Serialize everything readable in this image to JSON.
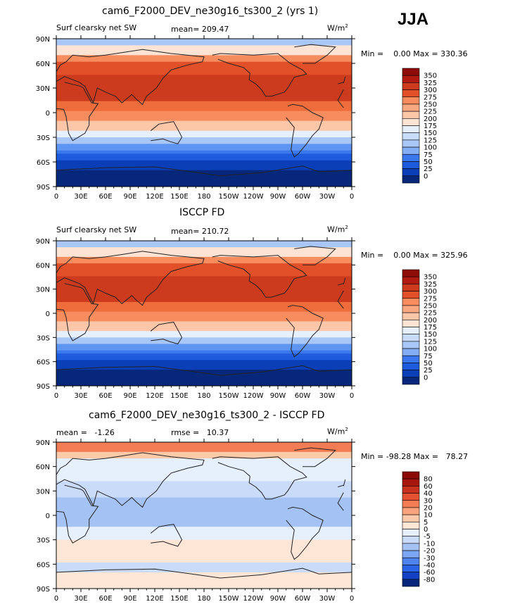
{
  "season": "JJA",
  "colors": {
    "abs_scale": [
      "#07287a",
      "#0a3fb8",
      "#1f5bdd",
      "#3b78ee",
      "#5e94f2",
      "#84aef4",
      "#a8c6f6",
      "#c8dcfa",
      "#e6effc",
      "#fde3d4",
      "#fcc6a8",
      "#fba882",
      "#f78c5f",
      "#ef6d3d",
      "#e2502a",
      "#cd3b1f",
      "#b01a10",
      "#8e0c08"
    ],
    "diff_scale": [
      "#07287a",
      "#1241c4",
      "#2a63e6",
      "#4f83ee",
      "#7ca5f2",
      "#a5c2f5",
      "#c9dbf8",
      "#e6effc",
      "#fde6d6",
      "#fcc9a9",
      "#f9a47e",
      "#f27d55",
      "#e45232",
      "#c9311f",
      "#a8170f",
      "#8b0a07"
    ],
    "land": "#222222"
  },
  "chart_data": [
    {
      "type": "heatmap",
      "name": "model",
      "title": "cam6_F2000_DEV_ne30g16_ts300_2 (yrs 1)",
      "left_label": "Surf clearsky net SW",
      "center_label": "mean= 209.47",
      "units": "W/m",
      "units_sup": "2",
      "minmax": "Min =    0.00 Max = 330.36",
      "legend_labels": [
        "350",
        "325",
        "300",
        "275",
        "250",
        "225",
        "200",
        "175",
        "150",
        "125",
        "100",
        "75",
        "50",
        "25",
        "0"
      ],
      "x_ticks": [
        "0",
        "30E",
        "60E",
        "90E",
        "120E",
        "150E",
        "180",
        "150W",
        "120W",
        "90W",
        "60W",
        "30W",
        "0"
      ],
      "y_ticks": [
        "90N",
        "60N",
        "30N",
        "0",
        "30S",
        "60S",
        "90S"
      ],
      "xlim": [
        0,
        360
      ],
      "ylim": [
        -90,
        90
      ]
    },
    {
      "type": "heatmap",
      "name": "obs",
      "title": "ISCCP FD",
      "left_label": "Surf clearsky net SW",
      "center_label": "mean= 210.72",
      "units": "W/m",
      "units_sup": "2",
      "minmax": "Min =    0.00 Max = 325.96",
      "legend_labels": [
        "350",
        "325",
        "300",
        "275",
        "250",
        "225",
        "200",
        "175",
        "150",
        "125",
        "100",
        "75",
        "50",
        "25",
        "0"
      ],
      "x_ticks": [
        "0",
        "30E",
        "60E",
        "90E",
        "120E",
        "150E",
        "180",
        "150W",
        "120W",
        "90W",
        "60W",
        "30W",
        "0"
      ],
      "y_ticks": [
        "90N",
        "60N",
        "30N",
        "0",
        "30S",
        "60S",
        "90S"
      ],
      "xlim": [
        0,
        360
      ],
      "ylim": [
        -90,
        90
      ]
    },
    {
      "type": "heatmap",
      "name": "diff",
      "title": "cam6_F2000_DEV_ne30g16_ts300_2 - ISCCP FD",
      "left_label": "mean =   -1.26",
      "center_label": "rmse =   10.37",
      "units": "W/m",
      "units_sup": "2",
      "minmax": "Min = -98.28 Max =   78.27",
      "legend_labels": [
        "80",
        "60",
        "40",
        "30",
        "20",
        "10",
        "5",
        "0",
        "-5",
        "-10",
        "-20",
        "-30",
        "-40",
        "-60",
        "-80"
      ],
      "x_ticks": [
        "0",
        "30E",
        "60E",
        "90E",
        "120E",
        "150E",
        "180",
        "150W",
        "120W",
        "90W",
        "60W",
        "30W",
        "0"
      ],
      "y_ticks": [
        "90N",
        "60N",
        "30N",
        "0",
        "30S",
        "60S",
        "90S"
      ],
      "xlim": [
        0,
        360
      ],
      "ylim": [
        -90,
        90
      ]
    }
  ]
}
